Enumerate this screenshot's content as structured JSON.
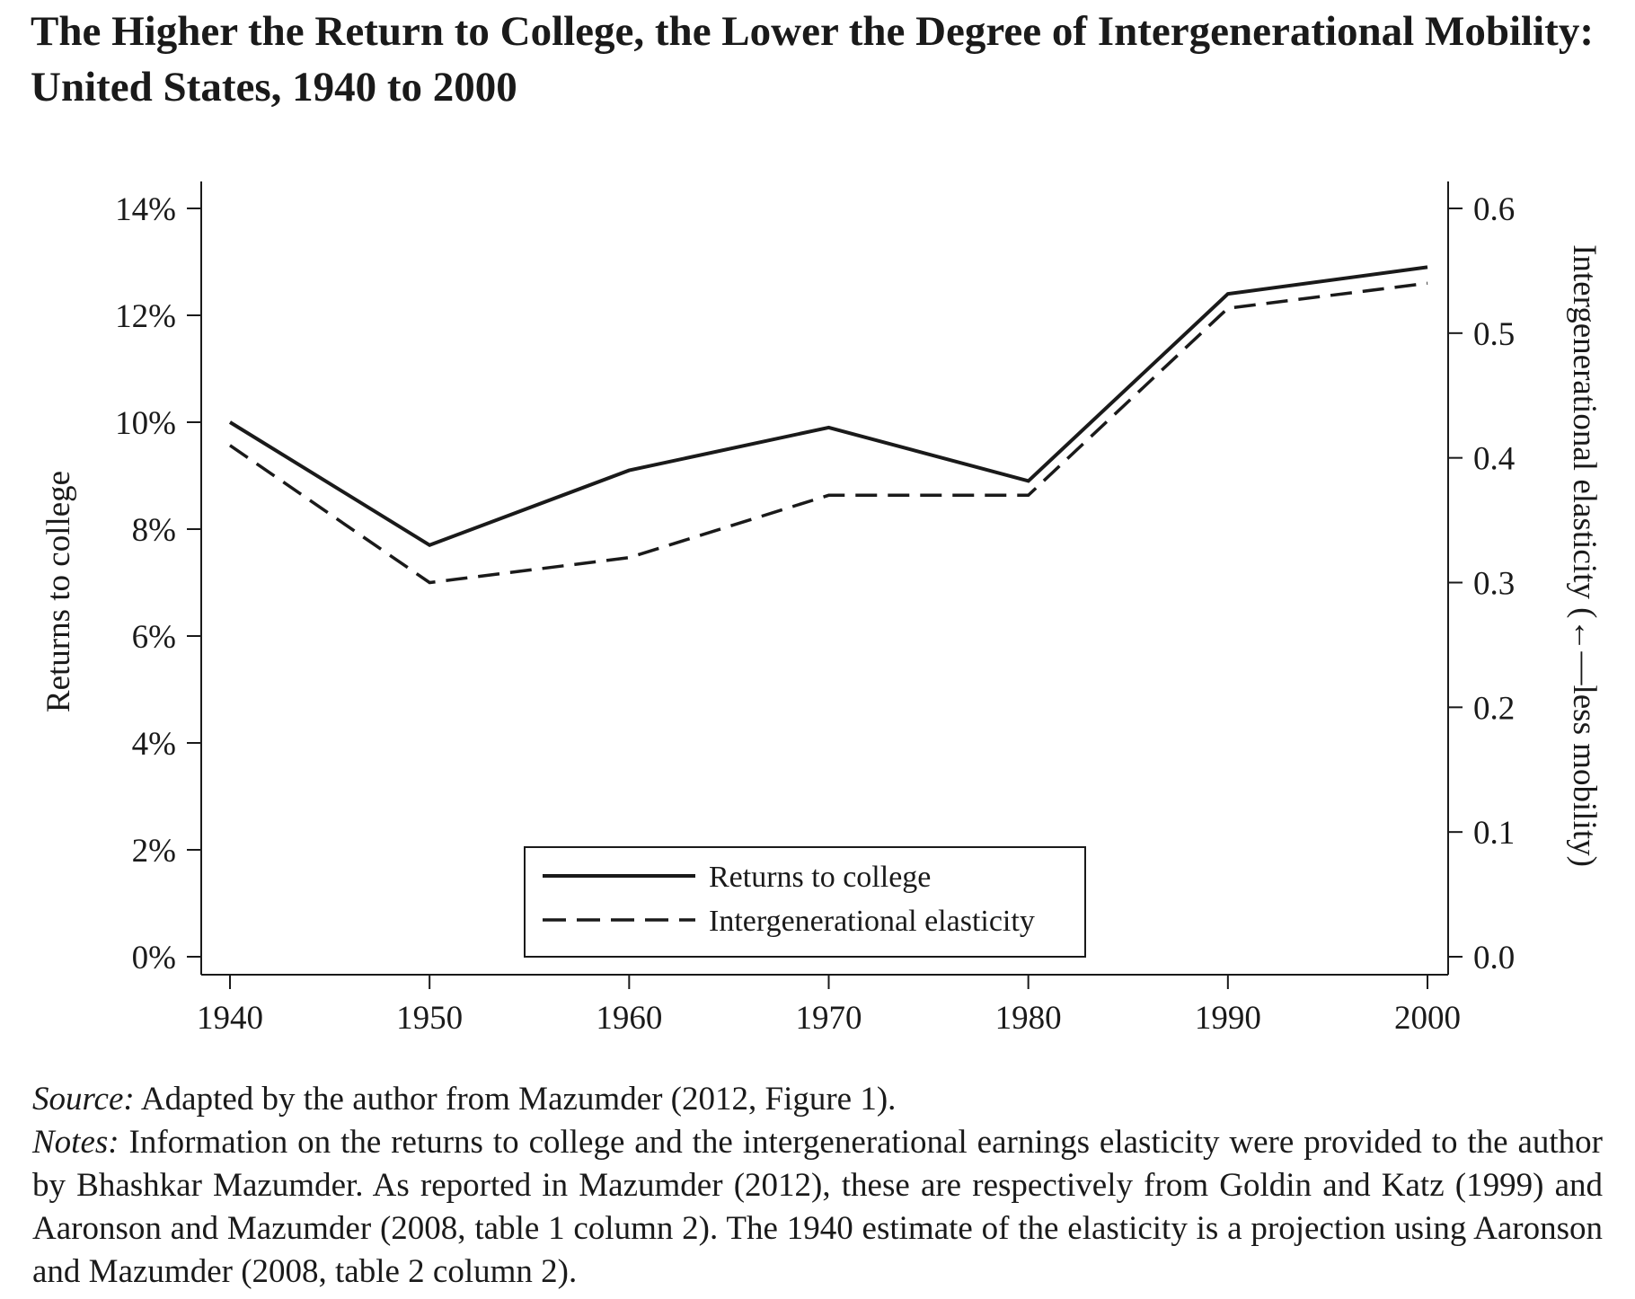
{
  "figure": {
    "title": "The Higher the Return to College, the Lower the Degree of Intergenerational Mobility: United States, 1940 to 2000",
    "source_label": "Source:",
    "source_text": "Adapted by the author from Mazumder (2012, Figure 1).",
    "notes_label": "Notes:",
    "notes_text": "Information on the returns to college and the intergenerational earnings elasticity were provided to the author by Bhashkar Mazumder. As reported in Mazumder (2012), these are respectively from Goldin and Katz (1999) and Aaronson and Mazumder (2008, table 1 column 2). The 1940 estimate of the elasticity is a projection using Aaronson and Mazumder (2008, table 2 column 2)."
  },
  "chart_data": {
    "type": "line",
    "x": [
      1940,
      1950,
      1960,
      1970,
      1980,
      1990,
      2000
    ],
    "xticks": [
      "1940",
      "1950",
      "1960",
      "1970",
      "1980",
      "1990",
      "2000"
    ],
    "xlim": [
      1939,
      2001
    ],
    "ylabel_left": "Returns to college",
    "ylabel_right": "Intergenerational elasticity (←—less mobility)",
    "ylim_left": [
      0,
      14
    ],
    "yticks_left": [
      0,
      2,
      4,
      6,
      8,
      10,
      12,
      14
    ],
    "yticklabels_left": [
      "0%",
      "2%",
      "4%",
      "6%",
      "8%",
      "10%",
      "12%",
      "14%"
    ],
    "ylim_right": [
      0,
      0.6
    ],
    "yticks_right": [
      0,
      0.1,
      0.2,
      0.3,
      0.4,
      0.5,
      0.6
    ],
    "yticklabels_right": [
      "0.0",
      "0.1",
      "0.2",
      "0.3",
      "0.4",
      "0.5",
      "0.6"
    ],
    "series": [
      {
        "name": "Returns to college",
        "axis": "left",
        "style": "solid",
        "values": [
          10.0,
          7.7,
          9.1,
          9.9,
          8.9,
          12.4,
          12.9
        ]
      },
      {
        "name": "Intergenerational elasticity",
        "axis": "right",
        "style": "dashed",
        "values": [
          0.41,
          0.3,
          0.32,
          0.37,
          0.37,
          0.52,
          0.54
        ]
      }
    ],
    "legend_position": "bottom-center",
    "grid": false,
    "colors": {
      "line": "#1a1a1a",
      "background": "#ffffff"
    }
  }
}
